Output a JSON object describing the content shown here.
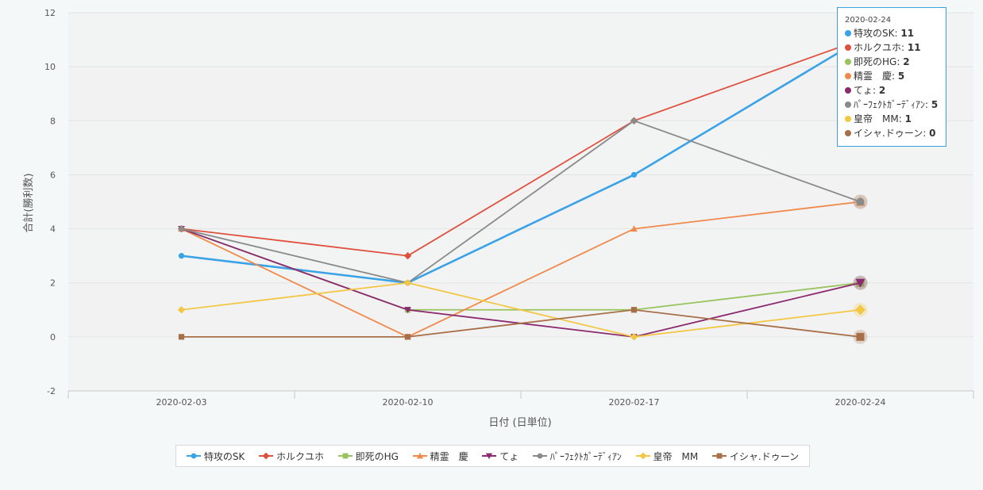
{
  "chart_data": {
    "type": "line",
    "title": "",
    "xlabel": "日付 (日単位)",
    "ylabel": "合計(勝利数)",
    "ylim": [
      -2,
      12
    ],
    "y_ticks": [
      "-2",
      "0",
      "2",
      "4",
      "6",
      "8",
      "10",
      "12"
    ],
    "categories": [
      "2020-02-03",
      "2020-02-10",
      "2020-02-17",
      "2020-02-24"
    ],
    "grid": true,
    "legend_position": "bottom",
    "series": [
      {
        "name": "特攻のSK",
        "color": "#3aa2e6",
        "marker": "circle",
        "values": [
          3,
          2,
          6,
          11
        ]
      },
      {
        "name": "ホルクユホ",
        "color": "#e0503f",
        "marker": "diamond",
        "values": [
          4,
          3,
          8,
          11
        ]
      },
      {
        "name": "即死のHG",
        "color": "#97c45c",
        "marker": "square",
        "values": [
          4,
          1,
          1,
          2
        ]
      },
      {
        "name": "精霊　慶",
        "color": "#f08a4b",
        "marker": "triangle",
        "values": [
          4,
          0,
          4,
          5
        ]
      },
      {
        "name": "てょ",
        "color": "#8b2a6e",
        "marker": "triangle-down",
        "values": [
          4,
          1,
          0,
          2
        ]
      },
      {
        "name": "ﾊﾟｰﾌｪｸﾄｶﾞｰﾃﾞｨｱﾝ",
        "color": "#8a8a8a",
        "marker": "circle",
        "values": [
          4,
          2,
          8,
          5
        ]
      },
      {
        "name": "皇帝　MM",
        "color": "#f2c744",
        "marker": "diamond",
        "values": [
          1,
          2,
          0,
          1
        ]
      },
      {
        "name": "イシャ.ドゥーン",
        "color": "#a86e48",
        "marker": "square",
        "values": [
          0,
          0,
          1,
          0
        ]
      }
    ]
  },
  "tooltip": {
    "date": "2020-02-24",
    "rows": [
      {
        "name": "特攻のSK",
        "value": "11",
        "color": "#3aa2e6"
      },
      {
        "name": "ホルクユホ",
        "value": "11",
        "color": "#e0503f"
      },
      {
        "name": "即死のHG",
        "value": "2",
        "color": "#97c45c"
      },
      {
        "name": "精霊　慶",
        "value": "5",
        "color": "#f08a4b"
      },
      {
        "name": "てょ",
        "value": "2",
        "color": "#8b2a6e"
      },
      {
        "name": "ﾊﾟｰﾌｪｸﾄｶﾞｰﾃﾞｨｱﾝ",
        "value": "5",
        "color": "#8a8a8a"
      },
      {
        "name": "皇帝　MM",
        "value": "1",
        "color": "#f2c744"
      },
      {
        "name": "イシャ.ドゥーン",
        "value": "0",
        "color": "#a86e48"
      }
    ]
  }
}
